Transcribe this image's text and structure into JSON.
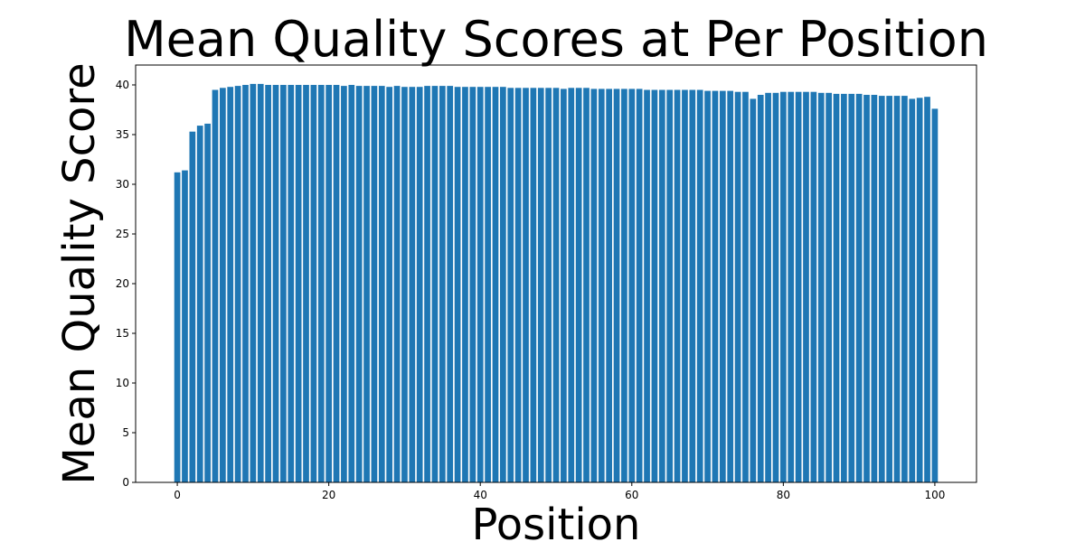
{
  "chart_data": {
    "type": "bar",
    "title": "Mean Quality Scores at Per Position",
    "xlabel": "Position",
    "ylabel": "Mean Quality Score",
    "xlim": [
      -5.5,
      105.5
    ],
    "ylim": [
      0,
      42
    ],
    "xticks": [
      0,
      20,
      40,
      60,
      80,
      100
    ],
    "yticks": [
      0,
      5,
      10,
      15,
      20,
      25,
      30,
      35,
      40
    ],
    "grid": false,
    "legend": "none",
    "bar_color": "#1f77b4",
    "x": [
      0,
      1,
      2,
      3,
      4,
      5,
      6,
      7,
      8,
      9,
      10,
      11,
      12,
      13,
      14,
      15,
      16,
      17,
      18,
      19,
      20,
      21,
      22,
      23,
      24,
      25,
      26,
      27,
      28,
      29,
      30,
      31,
      32,
      33,
      34,
      35,
      36,
      37,
      38,
      39,
      40,
      41,
      42,
      43,
      44,
      45,
      46,
      47,
      48,
      49,
      50,
      51,
      52,
      53,
      54,
      55,
      56,
      57,
      58,
      59,
      60,
      61,
      62,
      63,
      64,
      65,
      66,
      67,
      68,
      69,
      70,
      71,
      72,
      73,
      74,
      75,
      76,
      77,
      78,
      79,
      80,
      81,
      82,
      83,
      84,
      85,
      86,
      87,
      88,
      89,
      90,
      91,
      92,
      93,
      94,
      95,
      96,
      97,
      98,
      99,
      100
    ],
    "values": [
      31.2,
      31.4,
      35.3,
      35.9,
      36.1,
      39.5,
      39.7,
      39.8,
      39.9,
      40.0,
      40.1,
      40.1,
      40.0,
      40.0,
      40.0,
      40.0,
      40.0,
      40.0,
      40.0,
      40.0,
      40.0,
      40.0,
      39.9,
      40.0,
      39.9,
      39.9,
      39.9,
      39.9,
      39.8,
      39.9,
      39.8,
      39.8,
      39.8,
      39.9,
      39.9,
      39.9,
      39.9,
      39.8,
      39.8,
      39.8,
      39.8,
      39.8,
      39.8,
      39.8,
      39.7,
      39.7,
      39.7,
      39.7,
      39.7,
      39.7,
      39.7,
      39.6,
      39.7,
      39.7,
      39.7,
      39.6,
      39.6,
      39.6,
      39.6,
      39.6,
      39.6,
      39.6,
      39.5,
      39.5,
      39.5,
      39.5,
      39.5,
      39.5,
      39.5,
      39.5,
      39.4,
      39.4,
      39.4,
      39.4,
      39.3,
      39.3,
      38.6,
      39.0,
      39.2,
      39.2,
      39.3,
      39.3,
      39.3,
      39.3,
      39.3,
      39.2,
      39.2,
      39.1,
      39.1,
      39.1,
      39.1,
      39.0,
      39.0,
      38.9,
      38.9,
      38.9,
      38.9,
      38.6,
      38.7,
      38.8,
      37.6
    ]
  }
}
